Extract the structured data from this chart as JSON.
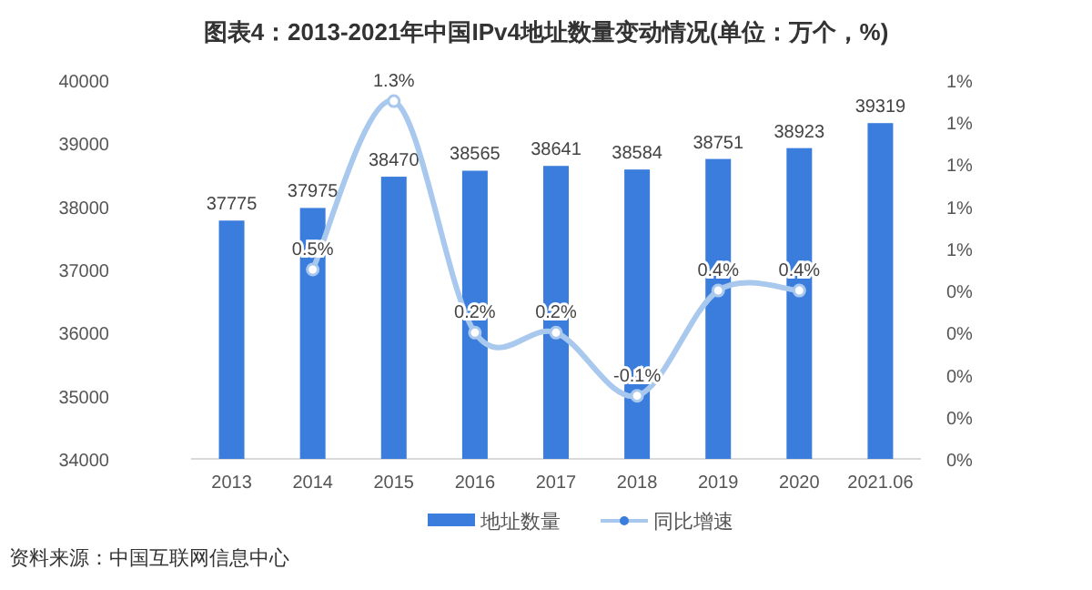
{
  "chart_data": {
    "type": "bar",
    "title": "图表4：2013-2021年中国IPv4地址数量变动情况(单位：万个，%)",
    "categories": [
      "2013",
      "2014",
      "2015",
      "2016",
      "2017",
      "2018",
      "2019",
      "2020",
      "2021.06"
    ],
    "series": [
      {
        "name": "地址数量",
        "color": "#3b7ddd",
        "values": [
          37775,
          37975,
          38470,
          38565,
          38641,
          38584,
          38751,
          38923,
          39319
        ],
        "value_labels": [
          "37775",
          "37975",
          "38470",
          "38565",
          "38641",
          "38584",
          "38751",
          "38923",
          "39319"
        ]
      },
      {
        "name": "同比增速",
        "type": "line",
        "axis": "y2",
        "color": "#a9c8ee",
        "marker": "circle",
        "values": [
          null,
          0.5,
          1.3,
          0.2,
          0.2,
          -0.1,
          0.4,
          0.4,
          null
        ],
        "value_labels": [
          null,
          "0.5%",
          "1.3%",
          "0.2%",
          "0.2%",
          "-0.1%",
          "0.4%",
          "0.4%",
          null
        ]
      }
    ],
    "ylim": [
      34000,
      40000
    ],
    "yticks": [
      34000,
      35000,
      36000,
      37000,
      38000,
      39000,
      40000
    ],
    "y2lim": [
      -0.4,
      1.4
    ],
    "y2ticks": [
      {
        "value": -0.4,
        "label": "0%"
      },
      {
        "value": -0.2,
        "label": "0%"
      },
      {
        "value": 0,
        "label": "0%"
      },
      {
        "value": 0.2,
        "label": "0%"
      },
      {
        "value": 0.4,
        "label": "0%"
      },
      {
        "value": 0.6,
        "label": "1%"
      },
      {
        "value": 0.8,
        "label": "1%"
      },
      {
        "value": 1.0,
        "label": "1%"
      },
      {
        "value": 1.2,
        "label": "1%"
      },
      {
        "value": 1.4,
        "label": "1%"
      }
    ],
    "grid": false,
    "legend": "bottom",
    "annotations": [
      "资料来源：中国互联网信息中心"
    ]
  }
}
